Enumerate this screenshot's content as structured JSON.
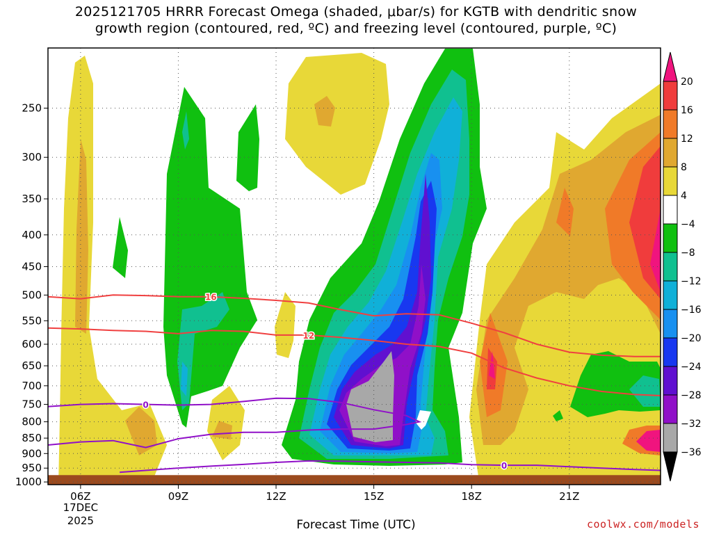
{
  "title_line1": "2025121705 HRRR Forecast Omega (shaded, μbar/s) for KGTB with dendritic snow",
  "title_line2": "growth region (contoured, red, ºC) and freezing level (contoured, purple, ºC)",
  "credit": "coolwx.com/models",
  "chart_data": {
    "type": "heatmap",
    "title": "2025121705 HRRR Forecast Omega (shaded, μbar/s) for KGTB with dendritic snow growth region (contoured, red, ºC) and freezing level (contoured, purple, ºC)",
    "xlabel": "Forecast Time (UTC)",
    "ylabel": "",
    "x_ticks": [
      "06Z",
      "09Z",
      "12Z",
      "15Z",
      "18Z",
      "21Z"
    ],
    "x_hours": [
      6,
      9,
      12,
      15,
      18,
      21
    ],
    "xlim": [
      5,
      23.8
    ],
    "date_label": [
      "17DEC",
      "2025"
    ],
    "y_ticks": [
      250,
      300,
      350,
      400,
      450,
      500,
      550,
      600,
      650,
      700,
      750,
      800,
      850,
      900,
      950,
      1000
    ],
    "ylim_hPa": [
      200,
      1010
    ],
    "ground_pressure": 975,
    "colorbar": {
      "labels": [
        "20",
        "16",
        "12",
        "8",
        "4",
        "−4",
        "−8",
        "−12",
        "−16",
        "−20",
        "−24",
        "−28",
        "−32",
        "−36"
      ],
      "colors": [
        "#f0147e",
        "#f03c3c",
        "#f07a28",
        "#e0a830",
        "#e8d838",
        "#ffffff",
        "#10c010",
        "#10c090",
        "#10b0d8",
        "#1890f0",
        "#1838f0",
        "#6010d0",
        "#9010c8",
        "#a8a8a8",
        "#000000"
      ]
    },
    "contours": [
      {
        "name": "-16C",
        "color": "#f04040",
        "label": "16",
        "label_hour": 10.0,
        "points": [
          [
            5,
            503
          ],
          [
            6,
            507
          ],
          [
            7,
            500
          ],
          [
            8,
            501
          ],
          [
            9,
            503
          ],
          [
            10,
            503
          ],
          [
            11,
            506
          ],
          [
            12,
            510
          ],
          [
            13,
            515
          ],
          [
            14,
            528
          ],
          [
            15,
            540
          ],
          [
            16,
            536
          ],
          [
            17,
            538
          ],
          [
            18,
            555
          ],
          [
            19,
            575
          ],
          [
            20,
            600
          ],
          [
            21,
            618
          ],
          [
            22,
            625
          ],
          [
            23,
            628
          ],
          [
            23.8,
            628
          ]
        ]
      },
      {
        "name": "-12C",
        "color": "#f04040",
        "label": "12",
        "label_hour": 13.0,
        "points": [
          [
            5,
            565
          ],
          [
            6,
            567
          ],
          [
            7,
            570
          ],
          [
            8,
            572
          ],
          [
            9,
            577
          ],
          [
            10,
            570
          ],
          [
            11,
            572
          ],
          [
            12,
            580
          ],
          [
            13,
            580
          ],
          [
            14,
            585
          ],
          [
            15,
            592
          ],
          [
            16,
            600
          ],
          [
            17,
            605
          ],
          [
            18,
            620
          ],
          [
            19,
            655
          ],
          [
            20,
            680
          ],
          [
            21,
            700
          ],
          [
            22,
            715
          ],
          [
            23,
            723
          ],
          [
            23.8,
            726
          ]
        ]
      },
      {
        "name": "0C-a",
        "color": "#9010c8",
        "label": "0",
        "label_hour": 8.0,
        "points": [
          [
            5,
            756
          ],
          [
            6,
            750
          ],
          [
            7,
            748
          ],
          [
            8,
            750
          ],
          [
            9,
            752
          ],
          [
            10,
            750
          ],
          [
            11,
            742
          ],
          [
            12,
            733
          ],
          [
            13,
            734
          ],
          [
            14,
            745
          ],
          [
            15,
            765
          ],
          [
            16,
            782
          ],
          [
            16.4,
            800
          ],
          [
            16,
            808
          ],
          [
            15,
            822
          ],
          [
            14,
            822
          ],
          [
            13,
            825
          ],
          [
            12,
            832
          ],
          [
            11,
            832
          ],
          [
            10,
            838
          ],
          [
            9,
            852
          ],
          [
            8,
            880
          ],
          [
            7,
            858
          ],
          [
            6,
            862
          ],
          [
            5,
            872
          ]
        ]
      },
      {
        "name": "0C-b",
        "color": "#9010c8",
        "label": "0",
        "label_hour": 19.0,
        "points": [
          [
            7.2,
            965
          ],
          [
            8,
            958
          ],
          [
            9,
            950
          ],
          [
            10,
            943
          ],
          [
            11,
            937
          ],
          [
            12,
            930
          ],
          [
            13,
            925
          ],
          [
            14,
            926
          ],
          [
            15,
            928
          ],
          [
            16,
            930
          ],
          [
            17,
            932
          ],
          [
            18,
            938
          ],
          [
            19,
            940
          ],
          [
            20,
            940
          ],
          [
            21,
            945
          ],
          [
            22,
            950
          ],
          [
            23,
            955
          ],
          [
            23.8,
            958
          ]
        ]
      }
    ]
  }
}
